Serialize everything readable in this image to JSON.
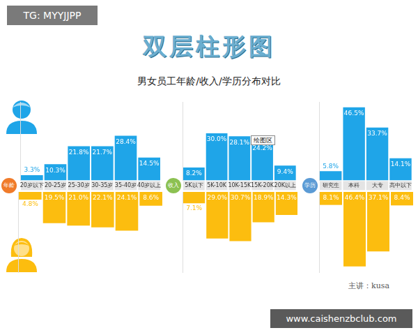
{
  "watermark": "TG: MYYJJPP",
  "title": "双层柱形图",
  "subtitle": "男女员工年龄/收入/学历分布对比",
  "footer": "主讲：kusa",
  "url": "www.caishenzbclub.com",
  "chart_data": [
    {
      "type": "bar",
      "label": "年龄",
      "categories": [
        "20岁以下",
        "20-25岁",
        "25-30岁",
        "30-35岁",
        "35-40岁",
        "40岁以上"
      ],
      "series": [
        {
          "color": "#1fa5e8",
          "values": [
            3.3,
            10.3,
            21.8,
            21.7,
            28.4,
            14.5
          ],
          "value_labels": [
            "3.3%",
            "10.3%",
            "21.8%",
            "21.7%",
            "28.4%",
            "14.5%"
          ]
        },
        {
          "color": "#fcbd0f",
          "values": [
            4.8,
            19.5,
            21.0,
            22.1,
            24.1,
            8.6
          ],
          "value_labels": [
            "4.8%",
            "19.5%",
            "21.0%",
            "22.1%",
            "24.1%",
            "8.6%"
          ]
        }
      ],
      "ylim": [
        0,
        50
      ],
      "grid": false,
      "data_labels": true,
      "tick_labels": "x"
    },
    {
      "type": "bar",
      "label": "收入",
      "categories": [
        "5K以下",
        "5K-10K",
        "10K-15K",
        "15K-20K",
        "20K以上"
      ],
      "series": [
        {
          "color": "#1fa5e8",
          "values": [
            8.2,
            30.0,
            28.1,
            24.2,
            9.4
          ],
          "value_labels": [
            "8.2%",
            "30.0%",
            "28.1%",
            "24.2%",
            "9.4%"
          ]
        },
        {
          "color": "#fcbd0f",
          "values": [
            7.1,
            29.0,
            30.7,
            18.9,
            14.3
          ],
          "value_labels": [
            "7.1%",
            "29.0%",
            "30.7%",
            "18.9%",
            "14.3%"
          ]
        }
      ],
      "annotations": [
        "绘图区"
      ],
      "ylim": [
        0,
        50
      ],
      "grid": false,
      "data_labels": true,
      "tick_labels": "x"
    },
    {
      "type": "bar",
      "label": "学历",
      "categories": [
        "研究生",
        "本科",
        "大专",
        "高中以下"
      ],
      "series": [
        {
          "color": "#1fa5e8",
          "values": [
            5.8,
            46.5,
            33.7,
            14.1
          ],
          "value_labels": [
            "5.8%",
            "46.5%",
            "33.7%",
            "14.1%"
          ]
        },
        {
          "color": "#fcbd0f",
          "values": [
            8.1,
            46.4,
            37.1,
            8.4
          ],
          "value_labels": [
            "8.1%",
            "46.4%",
            "37.1%",
            "8.4%"
          ]
        }
      ],
      "ylim": [
        0,
        50
      ],
      "grid": false,
      "data_labels": true,
      "tick_labels": "x"
    }
  ]
}
